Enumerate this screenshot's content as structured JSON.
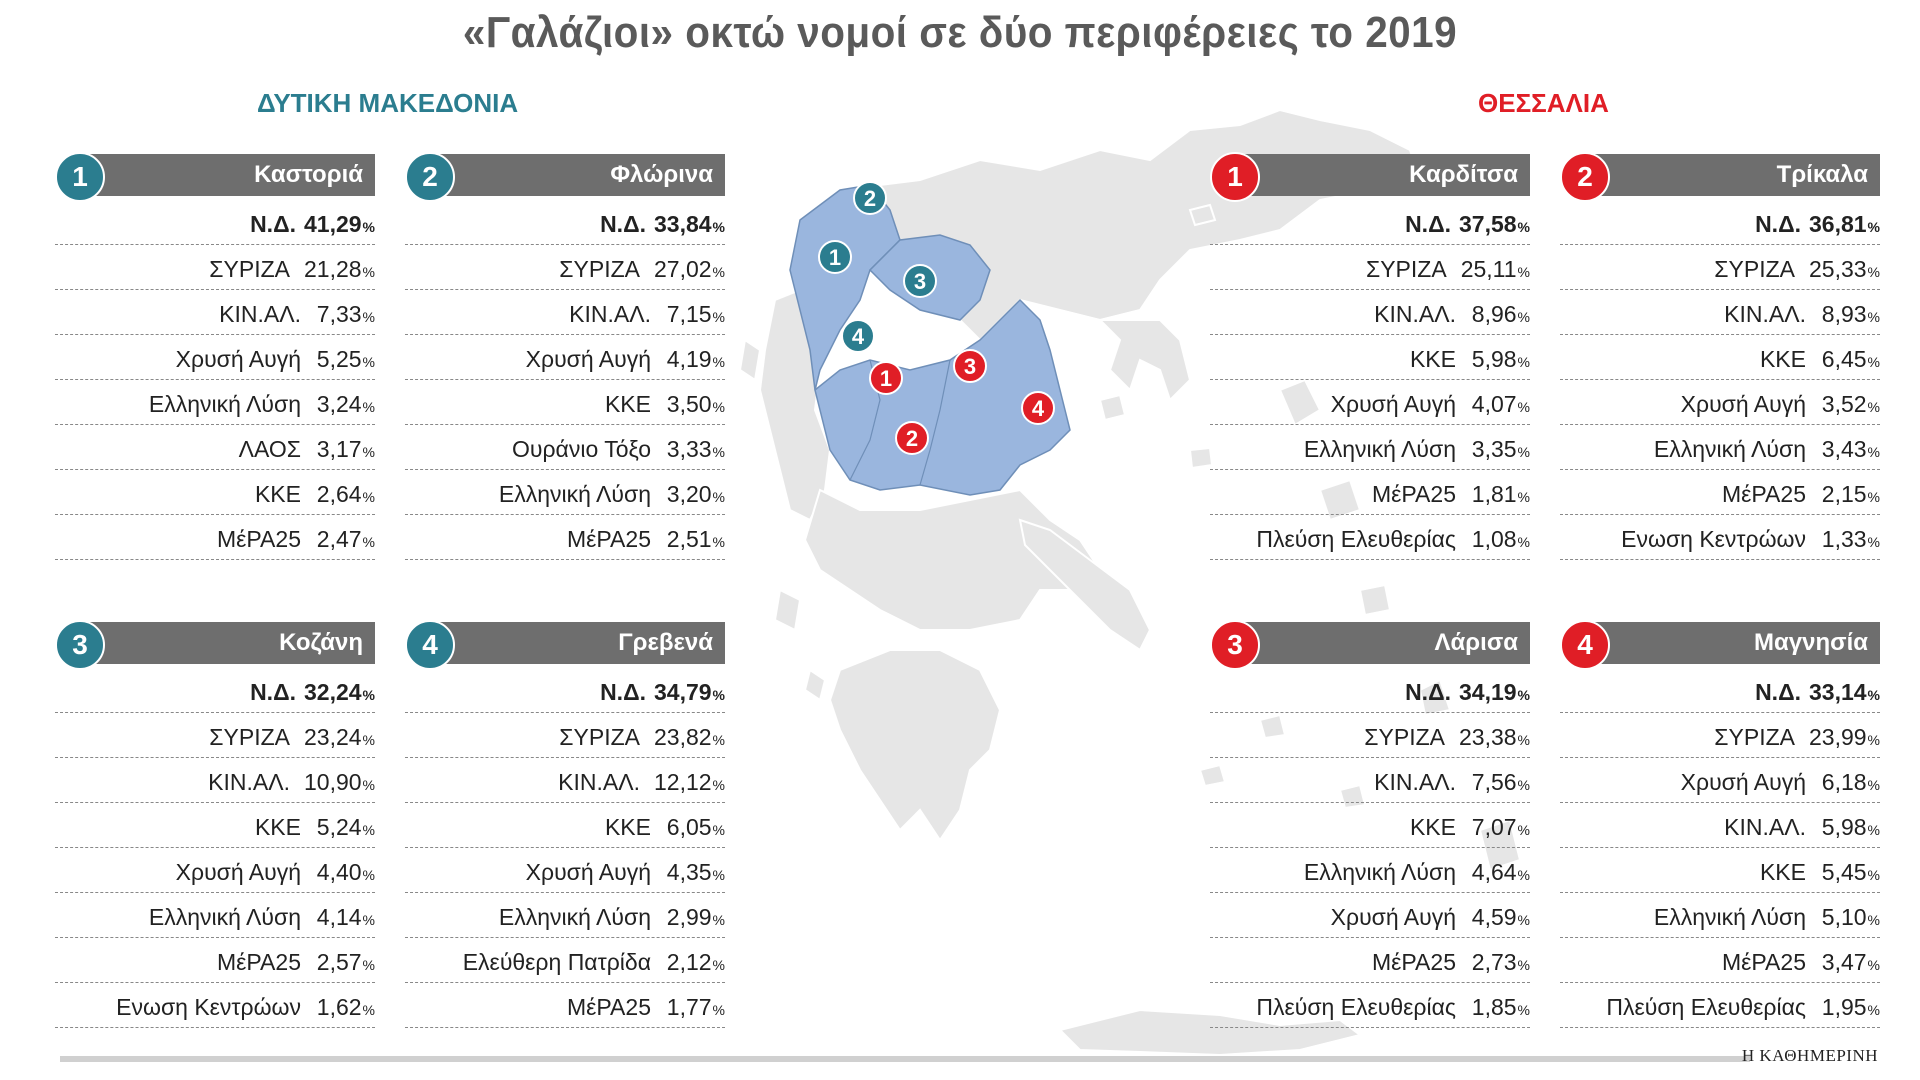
{
  "title": "«Γαλάζιοι» οκτώ νομοί σε δύο περιφέρειες το 2019",
  "colors": {
    "teal": "#2b7d8f",
    "red": "#e01e26",
    "highlight": "#9ab6de",
    "land": "#e6e6e6",
    "header": "#6e6e6e"
  },
  "regions": {
    "west": {
      "label": "ΔΥΤΙΚΗ ΜΑΚΕΔΟΝΙΑ",
      "color": "#2b7d8f",
      "prefectures": [
        {
          "num": "1",
          "name": "Καστοριά",
          "rows": [
            {
              "party": "Ν.Δ.",
              "value": "41,29"
            },
            {
              "party": "ΣΥΡΙΖΑ",
              "value": "21,28"
            },
            {
              "party": "ΚΙΝ.ΑΛ.",
              "value": "7,33"
            },
            {
              "party": "Χρυσή Αυγή",
              "value": "5,25"
            },
            {
              "party": "Ελληνική Λύση",
              "value": "3,24"
            },
            {
              "party": "ΛΑΟΣ",
              "value": "3,17"
            },
            {
              "party": "ΚΚΕ",
              "value": "2,64"
            },
            {
              "party": "ΜέΡΑ25",
              "value": "2,47"
            }
          ]
        },
        {
          "num": "2",
          "name": "Φλώρινα",
          "rows": [
            {
              "party": "Ν.Δ.",
              "value": "33,84"
            },
            {
              "party": "ΣΥΡΙΖΑ",
              "value": "27,02"
            },
            {
              "party": "ΚΙΝ.ΑΛ.",
              "value": "7,15"
            },
            {
              "party": "Χρυσή Αυγή",
              "value": "4,19"
            },
            {
              "party": "ΚΚΕ",
              "value": "3,50"
            },
            {
              "party": "Ουράνιο Τόξο",
              "value": "3,33"
            },
            {
              "party": "Ελληνική Λύση",
              "value": "3,20"
            },
            {
              "party": "ΜέΡΑ25",
              "value": "2,51"
            }
          ]
        },
        {
          "num": "3",
          "name": "Κοζάνη",
          "rows": [
            {
              "party": "Ν.Δ.",
              "value": "32,24"
            },
            {
              "party": "ΣΥΡΙΖΑ",
              "value": "23,24"
            },
            {
              "party": "ΚΙΝ.ΑΛ.",
              "value": "10,90"
            },
            {
              "party": "ΚΚΕ",
              "value": "5,24"
            },
            {
              "party": "Χρυσή Αυγή",
              "value": "4,40"
            },
            {
              "party": "Ελληνική Λύση",
              "value": "4,14"
            },
            {
              "party": "ΜέΡΑ25",
              "value": "2,57"
            },
            {
              "party": "Ενωση Κεντρώων",
              "value": "1,62"
            }
          ]
        },
        {
          "num": "4",
          "name": "Γρεβενά",
          "rows": [
            {
              "party": "Ν.Δ.",
              "value": "34,79"
            },
            {
              "party": "ΣΥΡΙΖΑ",
              "value": "23,82"
            },
            {
              "party": "ΚΙΝ.ΑΛ.",
              "value": "12,12"
            },
            {
              "party": "ΚΚΕ",
              "value": "6,05"
            },
            {
              "party": "Χρυσή Αυγή",
              "value": "4,35"
            },
            {
              "party": "Ελληνική Λύση",
              "value": "2,99"
            },
            {
              "party": "Ελεύθερη Πατρίδα",
              "value": "2,12"
            },
            {
              "party": "ΜέΡΑ25",
              "value": "1,77"
            }
          ]
        }
      ]
    },
    "east": {
      "label": "ΘΕΣΣΑΛΙΑ",
      "color": "#e01e26",
      "prefectures": [
        {
          "num": "1",
          "name": "Καρδίτσα",
          "rows": [
            {
              "party": "Ν.Δ.",
              "value": "37,58"
            },
            {
              "party": "ΣΥΡΙΖΑ",
              "value": "25,11"
            },
            {
              "party": "ΚΙΝ.ΑΛ.",
              "value": "8,96"
            },
            {
              "party": "ΚΚΕ",
              "value": "5,98"
            },
            {
              "party": "Χρυσή Αυγή",
              "value": "4,07"
            },
            {
              "party": "Ελληνική Λύση",
              "value": "3,35"
            },
            {
              "party": "ΜέΡΑ25",
              "value": "1,81"
            },
            {
              "party": "Πλεύση Ελευθερίας",
              "value": "1,08"
            }
          ]
        },
        {
          "num": "2",
          "name": "Τρίκαλα",
          "rows": [
            {
              "party": "Ν.Δ.",
              "value": "36,81"
            },
            {
              "party": "ΣΥΡΙΖΑ",
              "value": "25,33"
            },
            {
              "party": "ΚΙΝ.ΑΛ.",
              "value": "8,93"
            },
            {
              "party": "ΚΚΕ",
              "value": "6,45"
            },
            {
              "party": "Χρυσή Αυγή",
              "value": "3,52"
            },
            {
              "party": "Ελληνική Λύση",
              "value": "3,43"
            },
            {
              "party": "ΜέΡΑ25",
              "value": "2,15"
            },
            {
              "party": "Ενωση Κεντρώων",
              "value": "1,33"
            }
          ]
        },
        {
          "num": "3",
          "name": "Λάρισα",
          "rows": [
            {
              "party": "Ν.Δ.",
              "value": "34,19"
            },
            {
              "party": "ΣΥΡΙΖΑ",
              "value": "23,38"
            },
            {
              "party": "ΚΙΝ.ΑΛ.",
              "value": "7,56"
            },
            {
              "party": "ΚΚΕ",
              "value": "7,07"
            },
            {
              "party": "Ελληνική Λύση",
              "value": "4,64"
            },
            {
              "party": "Χρυσή Αυγή",
              "value": "4,59"
            },
            {
              "party": "ΜέΡΑ25",
              "value": "2,73"
            },
            {
              "party": "Πλεύση Ελευθερίας",
              "value": "1,85"
            }
          ]
        },
        {
          "num": "4",
          "name": "Μαγνησία",
          "rows": [
            {
              "party": "Ν.Δ.",
              "value": "33,14"
            },
            {
              "party": "ΣΥΡΙΖΑ",
              "value": "23,99"
            },
            {
              "party": "Χρυσή Αυγή",
              "value": "6,18"
            },
            {
              "party": "ΚΙΝ.ΑΛ.",
              "value": "5,98"
            },
            {
              "party": "ΚΚΕ",
              "value": "5,45"
            },
            {
              "party": "Ελληνική Λύση",
              "value": "5,10"
            },
            {
              "party": "ΜέΡΑ25",
              "value": "3,47"
            },
            {
              "party": "Πλεύση Ελευθερίας",
              "value": "1,95"
            }
          ]
        }
      ]
    }
  },
  "map_markers": {
    "west": [
      "2",
      "1",
      "3",
      "4"
    ],
    "east": [
      "1",
      "3",
      "4",
      "2"
    ]
  },
  "percent_sign": "%",
  "brand": "Η ΚΑΘΗΜΕΡΙΝΗ"
}
